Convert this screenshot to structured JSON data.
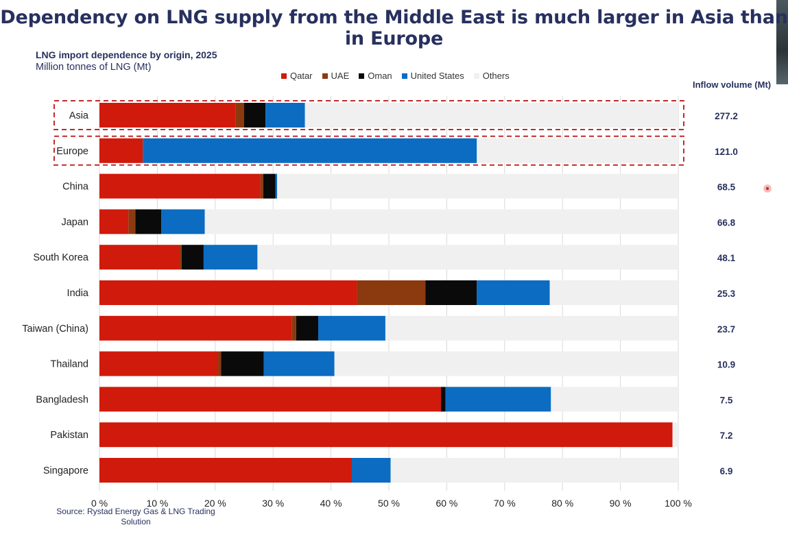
{
  "headline": "Dependency on LNG supply from the Middle East is much larger in Asia than in Europe",
  "source": "Source: Rystad Energy Gas & LNG Trading Solution",
  "colors": {
    "Qatar": "#d01a0b",
    "UAE": "#8b3a0f",
    "Oman": "#0a0a0a",
    "United States": "#0b6cc2",
    "Others": "#f0f0f0",
    "title": "#27305e",
    "highlight_box": "#c0282a"
  },
  "chart_data": {
    "type": "bar",
    "orientation": "horizontal",
    "stacked": true,
    "title": "LNG import dependence by origin, 2025",
    "subtitle": "Million tonnes of LNG (Mt)",
    "inflow_label": "Inflow volume (Mt)",
    "categories": [
      "Asia",
      "Europe",
      "China",
      "Japan",
      "South Korea",
      "India",
      "Taiwan (China)",
      "Thailand",
      "Bangladesh",
      "Pakistan",
      "Singapore"
    ],
    "series": [
      {
        "name": "Qatar",
        "values": [
          23.5,
          7.5,
          27.8,
          5.0,
          13.8,
          44.5,
          33.2,
          20.5,
          59.0,
          99.0,
          43.6
        ]
      },
      {
        "name": "UAE",
        "values": [
          1.5,
          0.0,
          0.5,
          1.2,
          0.4,
          11.8,
          0.8,
          0.5,
          0.0,
          0.0,
          0.0
        ]
      },
      {
        "name": "Oman",
        "values": [
          3.7,
          0.0,
          2.1,
          4.5,
          3.8,
          8.9,
          3.8,
          7.4,
          0.8,
          0.0,
          0.0
        ]
      },
      {
        "name": "United States",
        "values": [
          6.8,
          57.7,
          0.3,
          7.5,
          9.3,
          12.6,
          11.6,
          12.2,
          18.2,
          0.0,
          6.7
        ]
      },
      {
        "name": "Others",
        "values": [
          64.5,
          34.8,
          69.3,
          81.8,
          72.7,
          22.2,
          50.6,
          59.4,
          22.0,
          1.0,
          49.7
        ]
      }
    ],
    "inflow_volume": [
      "277.2",
      "121.0",
      "68.5",
      "66.8",
      "48.1",
      "25.3",
      "23.7",
      "10.9",
      "7.5",
      "7.2",
      "6.9"
    ],
    "highlighted": [
      "Asia",
      "Europe"
    ],
    "xlim": [
      0,
      100
    ],
    "x_ticks": [
      "0 %",
      "10 %",
      "20 %",
      "30 %",
      "40 %",
      "50 %",
      "60 %",
      "70 %",
      "80 %",
      "90 %",
      "100 %"
    ],
    "grid": true,
    "legend": "top"
  }
}
